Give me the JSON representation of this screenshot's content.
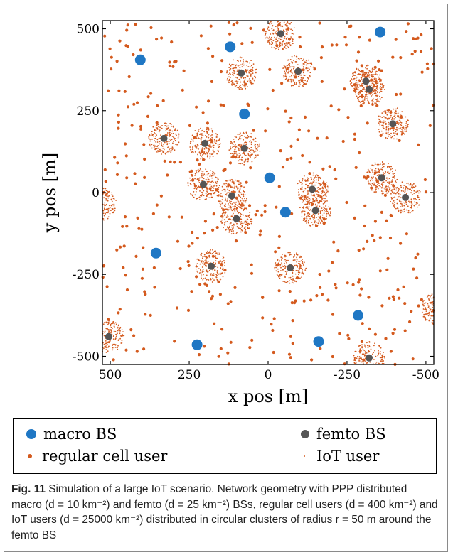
{
  "chart_data": {
    "type": "scatter",
    "title": "",
    "xlabel": "x pos [m]",
    "ylabel": "y pos [m]",
    "xlim": [
      525,
      -525
    ],
    "ylim": [
      -525,
      525
    ],
    "x_ticks": [
      "500",
      "250",
      "0",
      "-250",
      "-500"
    ],
    "y_ticks": [
      "500",
      "250",
      "0",
      "-250",
      "-500"
    ],
    "x_tick_values": [
      500,
      250,
      0,
      -250,
      -500
    ],
    "y_tick_values": [
      500,
      250,
      0,
      -250,
      -500
    ],
    "grid": false,
    "series": [
      {
        "name": "macro BS",
        "color": "#1f77c4",
        "points": [
          [
            405,
            405
          ],
          [
            120,
            445
          ],
          [
            75,
            240
          ],
          [
            -355,
            490
          ],
          [
            -5,
            45
          ],
          [
            -55,
            -60
          ],
          [
            355,
            -185
          ],
          [
            225,
            -465
          ],
          [
            -160,
            -455
          ],
          [
            -285,
            -375
          ]
        ]
      },
      {
        "name": "femto BS",
        "color": "#555555",
        "points": [
          [
            -40,
            485
          ],
          [
            85,
            365
          ],
          [
            -95,
            370
          ],
          [
            -310,
            340
          ],
          [
            -320,
            315
          ],
          [
            -395,
            210
          ],
          [
            330,
            165
          ],
          [
            200,
            150
          ],
          [
            75,
            135
          ],
          [
            205,
            25
          ],
          [
            115,
            -10
          ],
          [
            100,
            -80
          ],
          [
            -140,
            10
          ],
          [
            -150,
            -55
          ],
          [
            -360,
            45
          ],
          [
            -435,
            -15
          ],
          [
            530,
            -35
          ],
          [
            180,
            -225
          ],
          [
            -70,
            -230
          ],
          [
            -320,
            -505
          ],
          [
            -535,
            -355
          ],
          [
            505,
            -440
          ]
        ]
      },
      {
        "name": "regular cell user",
        "color": "#d45a1e"
      },
      {
        "name": "IoT user",
        "color": "#d45a1e"
      }
    ]
  },
  "legend": {
    "macro": "macro BS",
    "femto": "femto BS",
    "regular": "regular cell user",
    "iot": "IoT user"
  },
  "caption": {
    "fig": "Fig. 11",
    "text": "Simulation of a large IoT scenario. Network geometry with PPP distributed macro (d = 10 km⁻²) and femto (d = 25 km⁻²) BSs, regular cell users (d = 400 km⁻²) and IoT users (d = 25000 km⁻²) distributed in circular clusters of radius r = 50 m around the femto BS"
  }
}
